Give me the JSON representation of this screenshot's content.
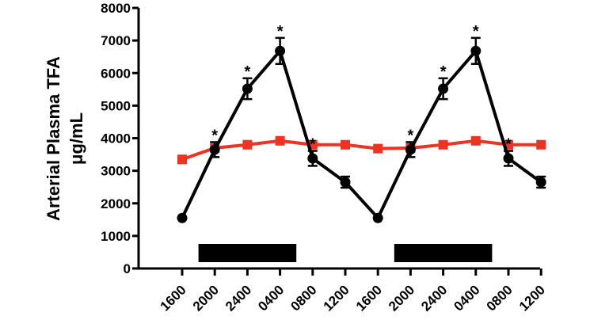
{
  "chart_data": {
    "type": "line",
    "title": "",
    "xlabel": "",
    "ylabel_lines": [
      "Arterial Plasma TFA",
      "μg/mL"
    ],
    "ylim": [
      0,
      8000
    ],
    "yticks": [
      0,
      1000,
      2000,
      3000,
      4000,
      5000,
      6000,
      7000,
      8000
    ],
    "categories": [
      "1600",
      "2000",
      "2400",
      "0400",
      "0800",
      "1200",
      "1600",
      "2000",
      "2400",
      "0400",
      "0800",
      "1200"
    ],
    "grid": false,
    "legend": "none",
    "series": [
      {
        "color": "#000000",
        "marker": "circle",
        "values": [
          1550,
          3650,
          5520,
          6680,
          3380,
          2650,
          1550,
          3650,
          5520,
          6680,
          3380,
          2650
        ],
        "error": [
          0,
          230,
          320,
          400,
          230,
          170,
          0,
          230,
          320,
          400,
          230,
          170
        ],
        "significant": [
          false,
          true,
          true,
          true,
          true,
          false,
          false,
          true,
          true,
          true,
          true,
          false
        ]
      },
      {
        "color": "#ee3322",
        "marker": "square",
        "values": [
          3350,
          3700,
          3800,
          3920,
          3800,
          3800,
          3680,
          3700,
          3800,
          3920,
          3800,
          3800
        ]
      }
    ],
    "dark_periods": [
      {
        "from_index": 0.5,
        "to_index": 3.5
      },
      {
        "from_index": 6.5,
        "to_index": 9.5
      }
    ],
    "significance_symbol": "*"
  }
}
